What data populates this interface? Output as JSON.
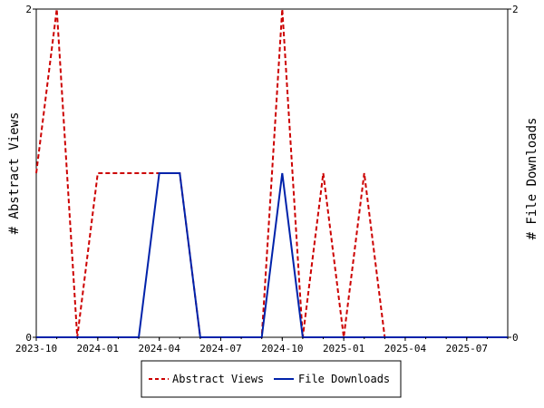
{
  "chart_data": {
    "type": "line",
    "y_left_label": "# Abstract Views",
    "y_right_label": "# File Downloads",
    "y_left_range": [
      0,
      2
    ],
    "y_right_range": [
      0,
      2
    ],
    "y_left_ticks": [
      "0",
      "2"
    ],
    "y_right_ticks": [
      "0",
      "2"
    ],
    "x_range": [
      "2023-10",
      "2025-09"
    ],
    "x_ticks": [
      "2023-10",
      "2024-01",
      "2024-04",
      "2024-07",
      "2024-10",
      "2025-01",
      "2025-04",
      "2025-07"
    ],
    "months": [
      "2023-10",
      "2023-11",
      "2023-12",
      "2024-01",
      "2024-02",
      "2024-03",
      "2024-04",
      "2024-05",
      "2024-06",
      "2024-07",
      "2024-08",
      "2024-09",
      "2024-10",
      "2024-11",
      "2024-12",
      "2025-01",
      "2025-02",
      "2025-03",
      "2025-04",
      "2025-05",
      "2025-06",
      "2025-07",
      "2025-08",
      "2025-09"
    ],
    "series": [
      {
        "name": "Abstract Views",
        "color": "#cc0000",
        "style": "dashed",
        "axis": "left",
        "values": [
          1,
          2,
          0,
          1,
          1,
          1,
          1,
          1,
          0,
          0,
          0,
          0,
          2,
          0,
          1,
          0,
          1,
          0,
          0,
          0,
          0,
          0,
          0,
          0
        ]
      },
      {
        "name": "File Downloads",
        "color": "#0022aa",
        "style": "solid",
        "axis": "right",
        "values": [
          0,
          0,
          0,
          0,
          0,
          0,
          1,
          1,
          0,
          0,
          0,
          0,
          1,
          0,
          0,
          0,
          0,
          0,
          0,
          0,
          0,
          0,
          0,
          0
        ]
      }
    ],
    "grid": false,
    "legend_position": "bottom"
  }
}
